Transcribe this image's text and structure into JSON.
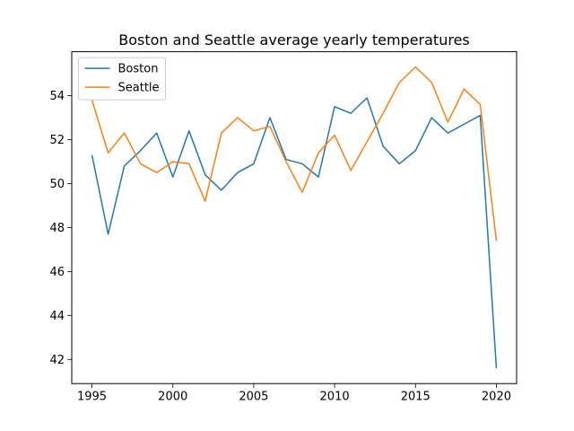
{
  "chart_data": {
    "type": "line",
    "title": "Boston and Seattle average yearly temperatures",
    "xlabel": "",
    "ylabel": "",
    "x": [
      1995,
      1996,
      1997,
      1998,
      1999,
      2000,
      2001,
      2002,
      2003,
      2004,
      2005,
      2006,
      2007,
      2008,
      2009,
      2010,
      2011,
      2012,
      2013,
      2014,
      2015,
      2016,
      2017,
      2018,
      2019,
      2020
    ],
    "series": [
      {
        "name": "Boston",
        "color": "#1f77b4",
        "values": [
          51.3,
          47.7,
          50.8,
          51.5,
          52.3,
          50.3,
          52.4,
          50.4,
          49.7,
          50.5,
          50.9,
          53.0,
          51.1,
          50.9,
          50.3,
          53.5,
          53.2,
          53.9,
          51.7,
          50.9,
          51.5,
          53.0,
          52.3,
          52.7,
          53.1,
          41.6
        ]
      },
      {
        "name": "Seattle",
        "color": "#ff7f0e",
        "values": [
          53.8,
          51.4,
          52.3,
          50.9,
          50.5,
          51.0,
          50.9,
          49.2,
          52.3,
          53.0,
          52.4,
          52.6,
          51.0,
          49.6,
          51.4,
          52.2,
          50.6,
          51.9,
          53.2,
          54.6,
          55.3,
          54.6,
          52.8,
          54.3,
          53.6,
          47.4
        ]
      }
    ],
    "xlim": [
      1993.75,
      2021.25
    ],
    "ylim": [
      40.9,
      56.0
    ],
    "xticks": [
      1995,
      2000,
      2005,
      2010,
      2015,
      2020
    ],
    "yticks": [
      42,
      44,
      46,
      48,
      50,
      52,
      54
    ],
    "grid": false,
    "legend": "top-left"
  }
}
